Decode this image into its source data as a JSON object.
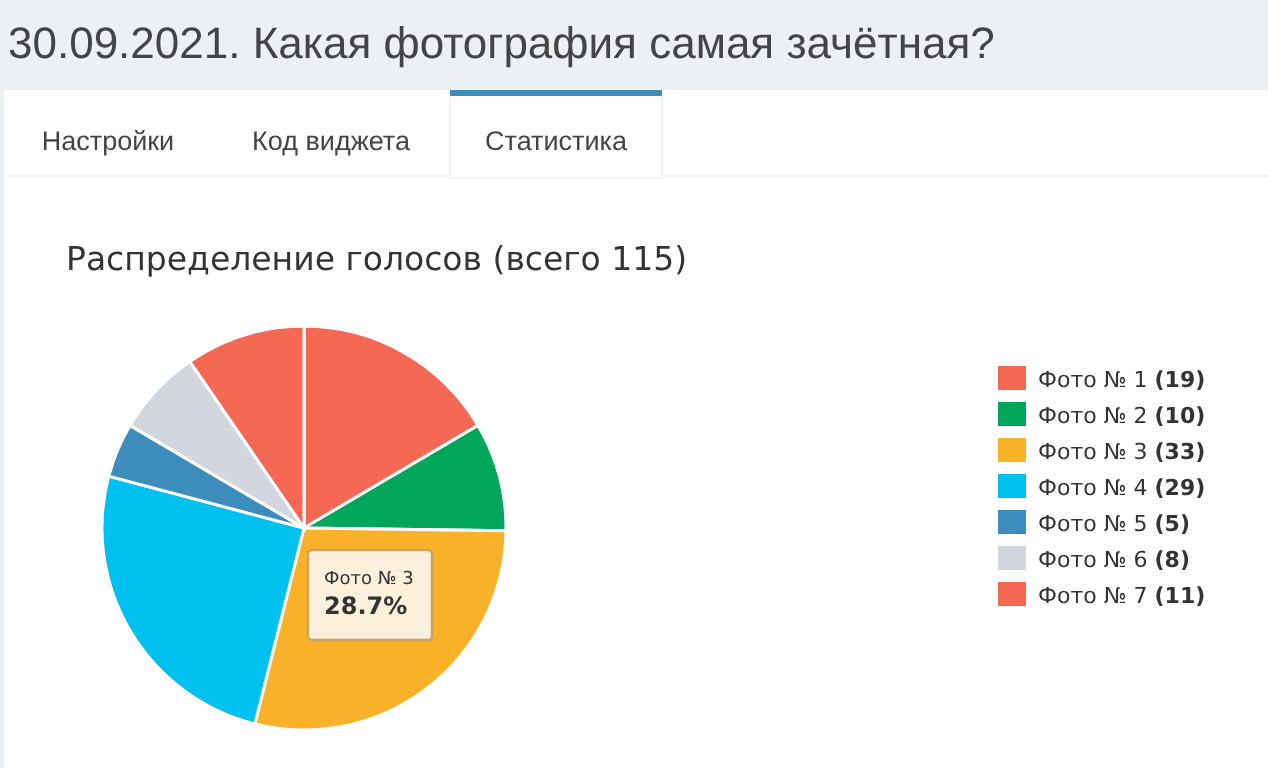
{
  "chart_data": {
    "type": "pie",
    "title": "30.09.2021. Какая фотография самая зачётная?",
    "subtitle": "Распределение голосов (всего 115)",
    "categories": [
      "Фото № 1",
      "Фото № 2",
      "Фото № 3",
      "Фото № 4",
      "Фото № 5",
      "Фото № 6",
      "Фото № 7"
    ],
    "values": [
      19,
      10,
      33,
      29,
      5,
      8,
      11
    ],
    "colors": [
      "#f56954",
      "#00a65a",
      "#f9b12a",
      "#00c0ef",
      "#3c8dbc",
      "#d2d6de",
      "#f56954"
    ],
    "value_labels": [
      "(19)",
      "(10)",
      "(33)",
      "(29)",
      "(5)",
      "(8)",
      "(11)"
    ],
    "legend": "right",
    "annotations": [
      "Настройки",
      "Код виджета",
      "Статистика",
      "Фото № 3",
      "28.7%"
    ]
  }
}
